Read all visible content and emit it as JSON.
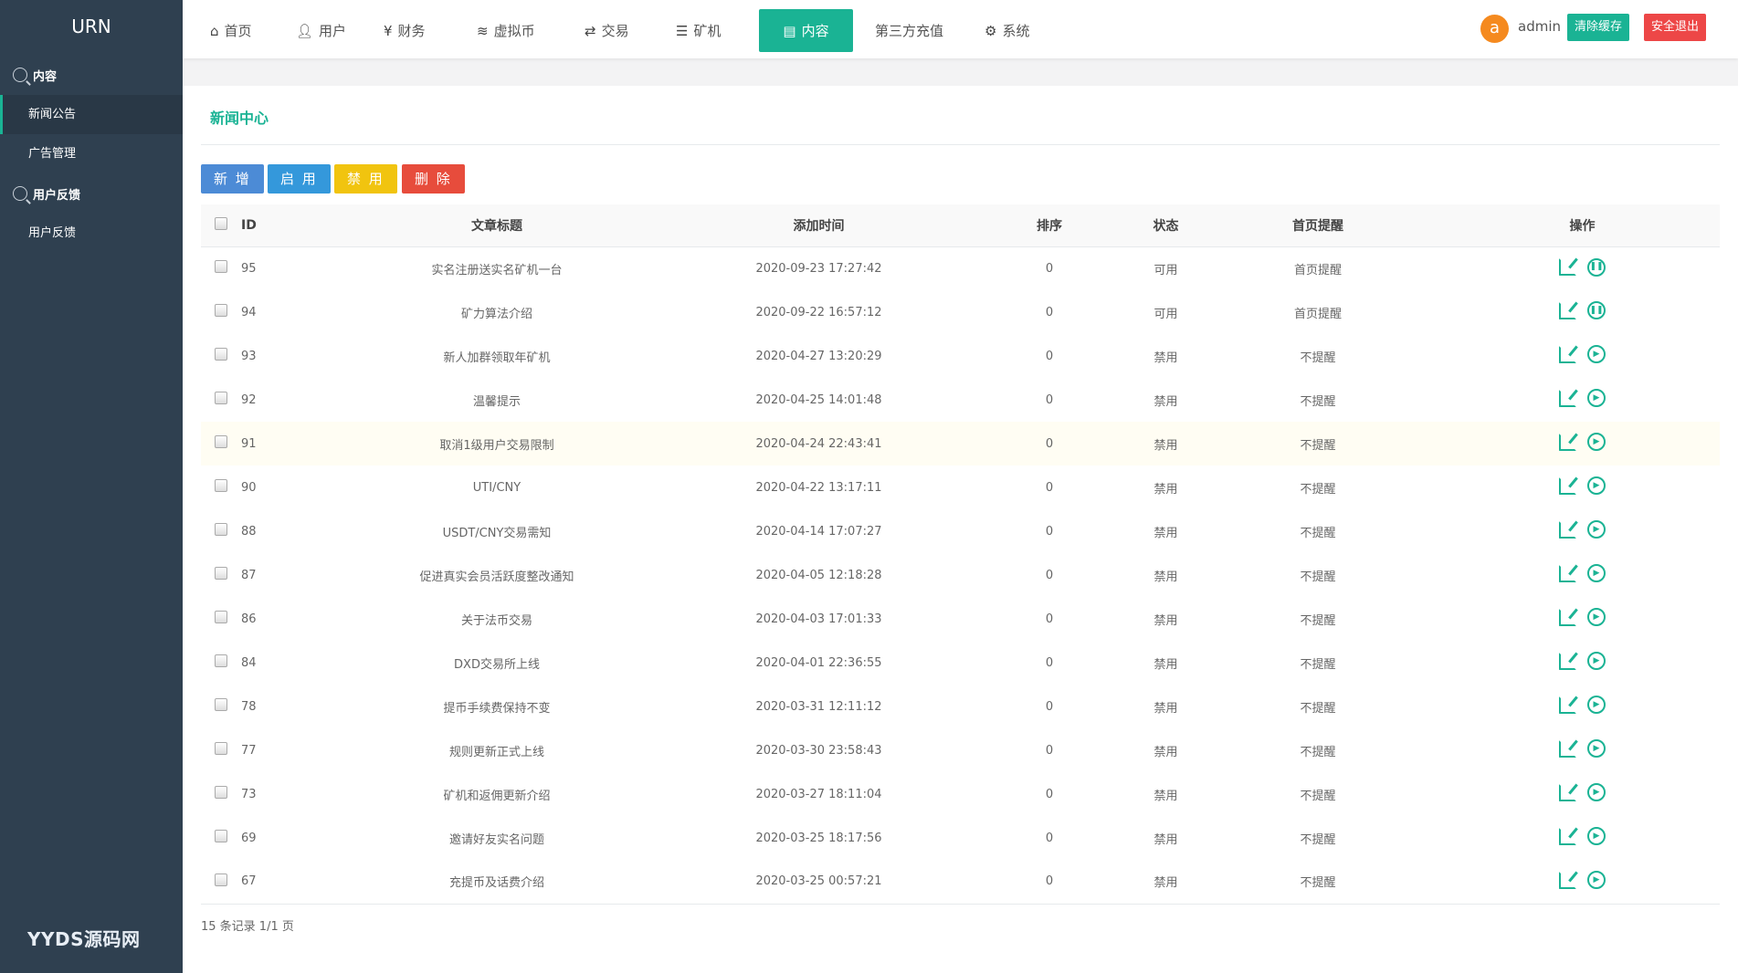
{
  "sidebar": {
    "brand": "URN",
    "groups": [
      {
        "label": "内容",
        "items": [
          "新闻公告",
          "广告管理"
        ]
      },
      {
        "label": "用户反馈",
        "items": [
          "用户反馈"
        ]
      }
    ],
    "logo_text": "YYDS源码网"
  },
  "header": {
    "nav": [
      {
        "label": "首页",
        "icon": "home-icon"
      },
      {
        "label": "用户",
        "icon": "user-icon"
      },
      {
        "label": "财务",
        "icon": "yen-icon"
      },
      {
        "label": "虚拟币",
        "icon": "database-icon"
      },
      {
        "label": "交易",
        "icon": "exchange-icon"
      },
      {
        "label": "矿机",
        "icon": "server-icon"
      },
      {
        "label": "内容",
        "icon": "list-icon",
        "active": true
      },
      {
        "label": "第三方充值"
      },
      {
        "label": "系统",
        "icon": "gear-icon"
      }
    ],
    "avatar_letter": "a",
    "username": "admin",
    "clear_cache": "清除缓存",
    "logout": "安全退出"
  },
  "colors": {
    "sidebar": "#2f4050",
    "accent": "#1ab394",
    "add": "#4c8bd6",
    "enable": "#3498db",
    "disable": "#f1c40f",
    "delete": "#e74c3c",
    "logout": "#ed4747",
    "avatar": "#f58a1f"
  },
  "main": {
    "title": "新闻中心",
    "buttons": {
      "add": "新 增",
      "enable": "启 用",
      "disable": "禁 用",
      "delete": "删 除"
    },
    "columns": [
      "ID",
      "文章标题",
      "添加时间",
      "排序",
      "状态",
      "首页提醒",
      "操作"
    ],
    "rows": [
      [
        "95",
        "实名注册送实名矿机一台",
        "2020-09-23 17:27:42",
        "0",
        "可用",
        "首页提醒"
      ],
      [
        "94",
        "矿力算法介绍",
        "2020-09-22 16:57:12",
        "0",
        "可用",
        "首页提醒"
      ],
      [
        "93",
        "新人加群领取年矿机",
        "2020-04-27 13:20:29",
        "0",
        "禁用",
        "不提醒"
      ],
      [
        "92",
        "温馨提示",
        "2020-04-25 14:01:48",
        "0",
        "禁用",
        "不提醒"
      ],
      [
        "91",
        "取消1级用户交易限制",
        "2020-04-24 22:43:41",
        "0",
        "禁用",
        "不提醒"
      ],
      [
        "90",
        "UTI/CNY",
        "2020-04-22 13:17:11",
        "0",
        "禁用",
        "不提醒"
      ],
      [
        "88",
        "USDT/CNY交易需知",
        "2020-04-14 17:07:27",
        "0",
        "禁用",
        "不提醒"
      ],
      [
        "87",
        "促进真实会员活跃度整改通知",
        "2020-04-05 12:18:28",
        "0",
        "禁用",
        "不提醒"
      ],
      [
        "86",
        "关于法币交易",
        "2020-04-03 17:01:33",
        "0",
        "禁用",
        "不提醒"
      ],
      [
        "84",
        "DXD交易所上线",
        "2020-04-01 22:36:55",
        "0",
        "禁用",
        "不提醒"
      ],
      [
        "78",
        "提币手续费保持不变",
        "2020-03-31 12:11:12",
        "0",
        "禁用",
        "不提醒"
      ],
      [
        "77",
        "规则更新正式上线",
        "2020-03-30 23:58:43",
        "0",
        "禁用",
        "不提醒"
      ],
      [
        "73",
        "矿机和返佣更新介绍",
        "2020-03-27 18:11:04",
        "0",
        "禁用",
        "不提醒"
      ],
      [
        "69",
        "邀请好友实名问题",
        "2020-03-25 18:17:56",
        "0",
        "禁用",
        "不提醒"
      ],
      [
        "67",
        "充提币及话费介绍",
        "2020-03-25 00:57:21",
        "0",
        "禁用",
        "不提醒"
      ]
    ],
    "hovered_row_id": "91",
    "footer": "15 条记录 1/1 页"
  }
}
